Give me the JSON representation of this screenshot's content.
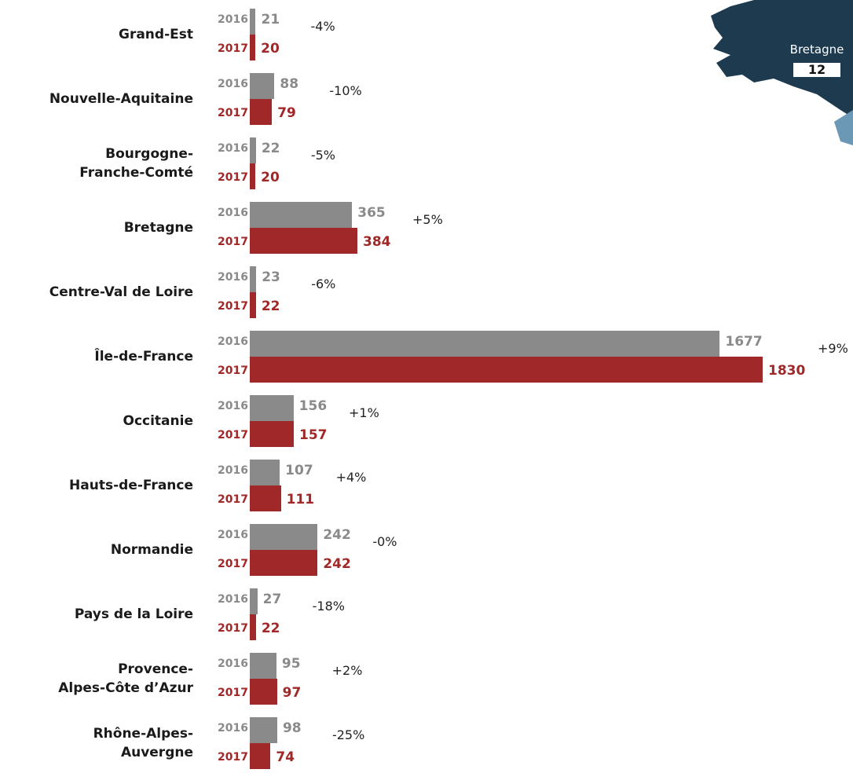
{
  "chart_data": {
    "type": "bar",
    "orientation": "horizontal",
    "categories": [
      "Grand-Est",
      "Nouvelle-Aquitaine",
      "Bourgogne-\nFranche-Comté",
      "Bretagne",
      "Centre-Val de Loire",
      "Île-de-France",
      "Occitanie",
      "Hauts-de-France",
      "Normandie",
      "Pays de la Loire",
      "Provence-\nAlpes-Côte d’Azur",
      "Rhône-Alpes-\nAuvergne"
    ],
    "series": [
      {
        "name": "2016",
        "color": "#8a8a8a",
        "values": [
          21,
          88,
          22,
          365,
          23,
          1677,
          156,
          107,
          242,
          27,
          95,
          98
        ]
      },
      {
        "name": "2017",
        "color": "#a02828",
        "values": [
          20,
          79,
          20,
          384,
          22,
          1830,
          157,
          111,
          242,
          22,
          97,
          74
        ]
      }
    ],
    "annotations": [
      "-4%",
      "-10%",
      "-5%",
      "+5%",
      "-6%",
      "+9%",
      "+1%",
      "+4%",
      "-0%",
      "-18%",
      "+2%",
      "-25%"
    ],
    "inset": {
      "label": "Bretagne",
      "value": 12
    }
  }
}
